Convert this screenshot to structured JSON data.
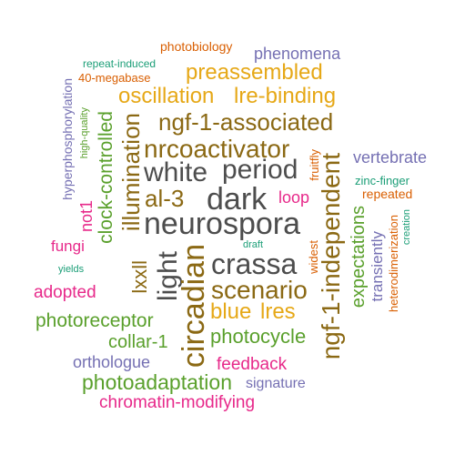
{
  "colors": {
    "dark": "#4d4d4d",
    "brown": "#8b6914",
    "gold": "#e6a817",
    "green": "#5aa02c",
    "purple": "#7570b3",
    "teal": "#1b9e77",
    "orange": "#d95f02",
    "pink": "#e7298a"
  },
  "words": {
    "photobiology": "photobiology",
    "phenomena": "phenomena",
    "repeat_induced": "repeat-induced",
    "megabase": "40-megabase",
    "preassembled": "preassembled",
    "oscillation": "oscillation",
    "lre_binding": "lre-binding",
    "ngf1_associated": "ngf-1-associated",
    "nrcoactivator": "nrcoactivator",
    "white": "white",
    "period": "period",
    "al3": "al-3",
    "dark": "dark",
    "neurospora": "neurospora",
    "crassa": "crassa",
    "scenario": "scenario",
    "blue": "blue",
    "lres": "lres",
    "loop": "loop",
    "photoreceptor": "photoreceptor",
    "collar1": "collar-1",
    "photocycle": "photocycle",
    "orthologue": "orthologue",
    "feedback": "feedback",
    "photoadaptation": "photoadaptation",
    "signature": "signature",
    "chromatin_modifying": "chromatin-modifying",
    "adopted": "adopted",
    "yields": "yields",
    "fungi": "fungi",
    "vertebrate": "vertebrate",
    "zinc_finger": "zinc-finger",
    "repeated": "repeated",
    "draft": "draft",
    "hyperphosphorylation": "hyperphosphorylation",
    "high_quality": "high-quality",
    "clock_controlled": "clock-controlled",
    "illumination": "illumination",
    "not1": "not1",
    "lxxll": "lxxll",
    "light": "light",
    "circadian": "circadian",
    "fruitfly": "fruitfly",
    "widest": "widest",
    "ngf1_independent": "ngf-1-independent",
    "expectations": "expectations",
    "transiently": "transiently",
    "heterodimerization": "heterodimerization",
    "creation": "creation"
  }
}
